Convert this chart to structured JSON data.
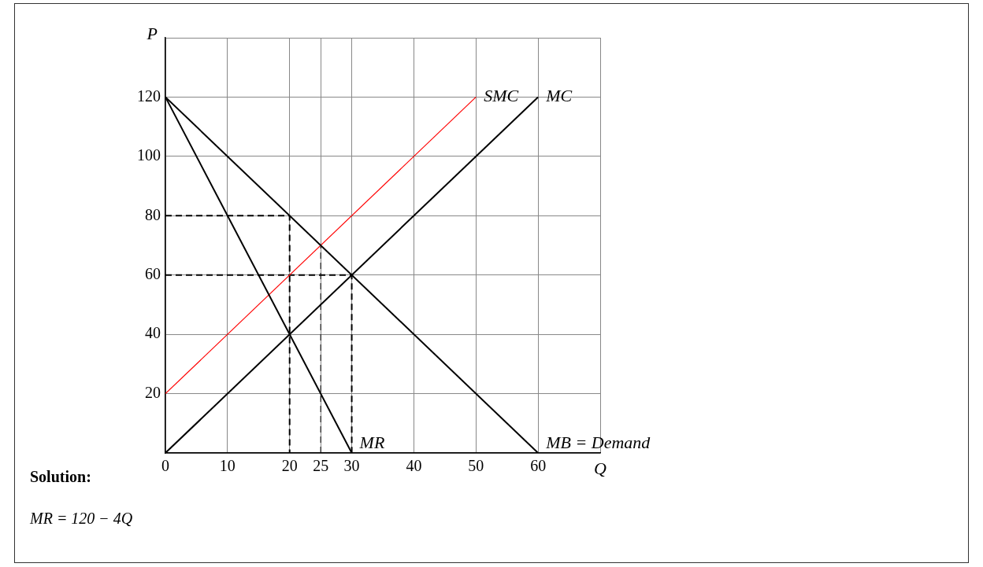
{
  "chart_data": {
    "type": "line",
    "xlabel": "Q",
    "ylabel": "P",
    "xlim": [
      0,
      70
    ],
    "ylim": [
      0,
      140
    ],
    "xticks": [
      0,
      10,
      20,
      25,
      30,
      40,
      50,
      60,
      {
        "value": 70,
        "label": null
      }
    ],
    "yticks": [
      {
        "value": 0,
        "label": null
      },
      20,
      40,
      60,
      80,
      100,
      120,
      {
        "value": 140,
        "label": null
      }
    ],
    "grid": true,
    "legend": false,
    "marker": "none",
    "annotations": [
      "Solution:",
      "MR = 120 − 4Q"
    ],
    "series": [
      {
        "name": "MB = Demand",
        "color": "#000000",
        "x": [
          0,
          60
        ],
        "values": [
          120,
          0
        ]
      },
      {
        "name": "MR",
        "color": "#000000",
        "x": [
          0,
          30
        ],
        "values": [
          120,
          0
        ]
      },
      {
        "name": "MC",
        "color": "#000000",
        "x": [
          0,
          60
        ],
        "values": [
          0,
          120
        ]
      },
      {
        "name": "SMC",
        "color": "#ff0000",
        "x": [
          0,
          50
        ],
        "values": [
          20,
          120
        ]
      },
      {
        "color": "#000000",
        "x": [
          0,
          20,
          20
        ],
        "values": [
          80,
          80,
          0
        ],
        "line_style": "dashed"
      },
      {
        "color": "#000000",
        "x": [
          0,
          30,
          30
        ],
        "values": [
          60,
          60,
          0
        ],
        "line_style": "dashed"
      },
      {
        "color": "#000000",
        "x": [
          25,
          25
        ],
        "values": [
          0,
          70
        ],
        "line_style": "dashed"
      }
    ]
  }
}
